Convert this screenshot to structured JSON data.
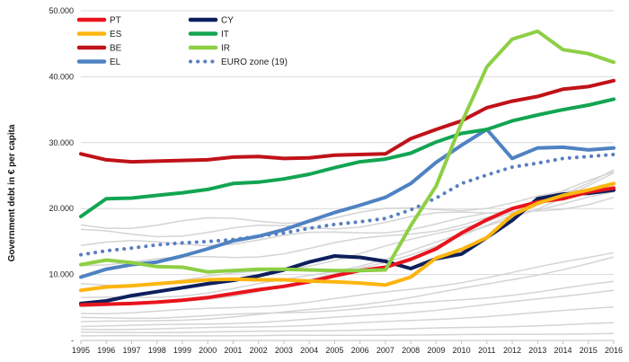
{
  "chart_data": {
    "type": "line",
    "ylabel": "Government debt in € per capita",
    "ylim": [
      0,
      50000
    ],
    "yticks": [
      {
        "value": 0,
        "label": "-"
      },
      {
        "value": 10000,
        "label": "10.000"
      },
      {
        "value": 20000,
        "label": "20.000"
      },
      {
        "value": 30000,
        "label": "30.000"
      },
      {
        "value": 40000,
        "label": "40.000"
      },
      {
        "value": 50000,
        "label": "50.000"
      }
    ],
    "x": [
      1995,
      1996,
      1997,
      1998,
      1999,
      2000,
      2001,
      2002,
      2003,
      2004,
      2005,
      2006,
      2007,
      2008,
      2009,
      2010,
      2011,
      2012,
      2013,
      2014,
      2015,
      2016
    ],
    "grid": "horizontal",
    "legend_position": "top-left",
    "series": [
      {
        "name": "PT",
        "color": "#e8141c",
        "values": [
          5400,
          5500,
          5600,
          5800,
          6100,
          6500,
          7100,
          7700,
          8200,
          8900,
          9800,
          10600,
          11100,
          12300,
          13900,
          16300,
          18300,
          20000,
          21000,
          21500,
          22500,
          23100
        ]
      },
      {
        "name": "ES",
        "color": "#fbb50f",
        "values": [
          7600,
          8100,
          8300,
          8600,
          8900,
          9200,
          9300,
          9200,
          9200,
          9000,
          8900,
          8700,
          8400,
          9600,
          12500,
          13800,
          15600,
          19000,
          20800,
          22000,
          22800,
          23800
        ]
      },
      {
        "name": "BE",
        "color": "#c0121a",
        "values": [
          28300,
          27400,
          27100,
          27200,
          27300,
          27400,
          27800,
          27900,
          27600,
          27700,
          28100,
          28200,
          28300,
          30600,
          32000,
          33300,
          35300,
          36300,
          37000,
          38100,
          38500,
          39400
        ]
      },
      {
        "name": "EL",
        "color": "#4f82c2",
        "values": [
          9600,
          10800,
          11500,
          11900,
          12800,
          13900,
          15100,
          15800,
          16800,
          18100,
          19400,
          20500,
          21700,
          23800,
          27000,
          29600,
          32000,
          27600,
          29200,
          29300,
          28900,
          29200
        ]
      },
      {
        "name": "CY",
        "color": "#0d1f5c",
        "values": [
          5600,
          6000,
          6800,
          7400,
          8000,
          8600,
          9100,
          9800,
          10700,
          11900,
          12800,
          12600,
          12000,
          10900,
          12400,
          13100,
          15600,
          18200,
          21500,
          22200,
          22300,
          22800
        ]
      },
      {
        "name": "IT",
        "color": "#12a552",
        "values": [
          18800,
          21500,
          21600,
          22000,
          22400,
          22900,
          23800,
          24000,
          24500,
          25200,
          26200,
          27100,
          27500,
          28400,
          30100,
          31400,
          32000,
          33300,
          34200,
          35000,
          35700,
          36600
        ]
      },
      {
        "name": "IR",
        "color": "#8ecf45",
        "values": [
          11500,
          12200,
          11800,
          11200,
          11100,
          10400,
          10600,
          10800,
          10800,
          10700,
          10600,
          10600,
          10700,
          17400,
          23400,
          33000,
          41500,
          45700,
          46900,
          44100,
          43500,
          42200
        ]
      },
      {
        "name": "EURO zone (19)",
        "color": "#5a7fc0",
        "dotted": true,
        "values": [
          13000,
          13600,
          14000,
          14500,
          14800,
          15000,
          15300,
          15800,
          16300,
          17000,
          17600,
          18000,
          18500,
          19800,
          21600,
          23800,
          25100,
          26300,
          26900,
          27600,
          27900,
          28200
        ]
      }
    ]
  }
}
